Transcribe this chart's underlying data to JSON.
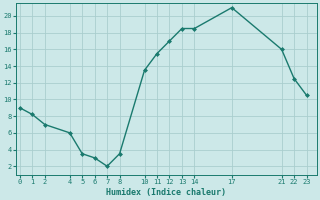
{
  "x": [
    0,
    1,
    2,
    4,
    5,
    6,
    7,
    8,
    10,
    11,
    12,
    13,
    14,
    17,
    21,
    22,
    23
  ],
  "y": [
    9,
    8.2,
    7,
    6,
    3.5,
    3,
    2,
    3.5,
    13.5,
    15.5,
    17,
    18.5,
    18.5,
    21,
    16,
    12.5,
    10.5
  ],
  "xticks": [
    0,
    1,
    2,
    4,
    5,
    6,
    7,
    8,
    10,
    11,
    12,
    13,
    14,
    17,
    21,
    22,
    23
  ],
  "yticks": [
    2,
    4,
    6,
    8,
    10,
    12,
    14,
    16,
    18,
    20
  ],
  "xlim": [
    -0.3,
    23.8
  ],
  "ylim": [
    1.0,
    21.5
  ],
  "xlabel": "Humidex (Indice chaleur)",
  "line_color": "#1a7a6e",
  "bg_color": "#cce8e8",
  "grid_color": "#aacece",
  "marker": "D",
  "markersize": 2.0,
  "linewidth": 1.0,
  "tick_fontsize": 5.0,
  "xlabel_fontsize": 6.0
}
